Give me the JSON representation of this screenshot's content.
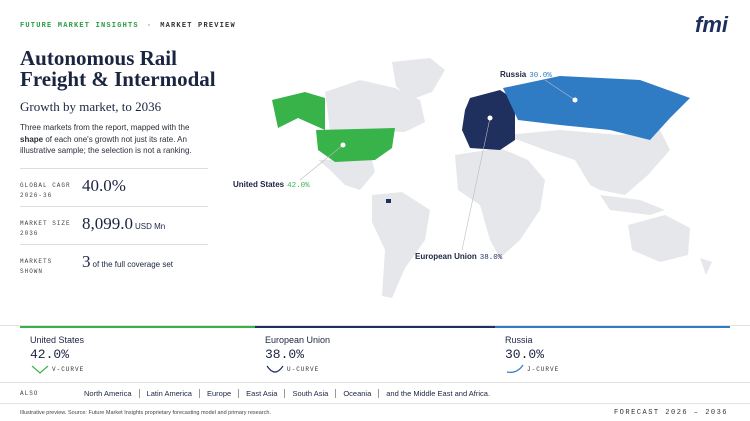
{
  "header": {
    "brand": "FUTURE MARKET INSIGHTS",
    "separator": "·",
    "section": "MARKET PREVIEW",
    "logo": "fmi"
  },
  "title": "Autonomous Rail Freight & Intermodal",
  "subtitle": "Growth by market, to 2036",
  "description": [
    "Three markets from the report, mapped with the ",
    "shape",
    " of each one's growth not just its rate. An illustrative sample; the selection is not a ranking."
  ],
  "stats": [
    {
      "label": [
        "GLOBAL CAGR",
        "2026-36"
      ],
      "value": "40.0%"
    },
    {
      "label": [
        "MARKET SIZE",
        "2036"
      ],
      "value": "8,099.0",
      "unit": "USD Mn"
    },
    {
      "label": [
        "MARKETS",
        "SHOWN"
      ],
      "value": "3",
      "unit": "of the full coverage set"
    }
  ],
  "markets": [
    {
      "name": "United States",
      "rate": "42.0%",
      "curve": "V-CURVE",
      "color": "#37b34a"
    },
    {
      "name": "European Union",
      "rate": "38.0%",
      "curve": "U-CURVE",
      "color": "#1f2f5e"
    },
    {
      "name": "Russia",
      "rate": "30.0%",
      "curve": "J-CURVE",
      "color": "#2f7bc4"
    }
  ],
  "also": {
    "label": "ALSO",
    "regions": [
      "North America",
      "Latin America",
      "Europe",
      "East Asia",
      "South Asia",
      "Oceania",
      "and the Middle East and Africa."
    ]
  },
  "footer": {
    "source": "Illustrative preview. Source: Future Market Insights proprietary forecasting model and primary research.",
    "forecast": "FORECAST 2026 – 2036"
  }
}
